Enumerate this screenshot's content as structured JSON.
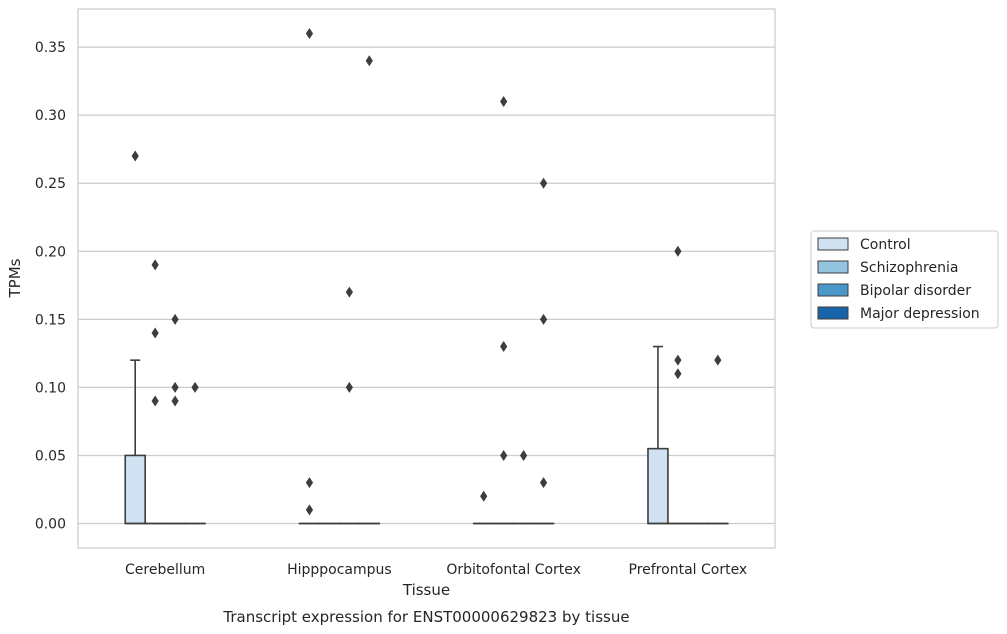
{
  "chart_data": {
    "type": "box",
    "title": "Transcript expression for ENST00000629823 by tissue",
    "xlabel": "Tissue",
    "ylabel": "TPMs",
    "ylim": [
      -0.018,
      0.378
    ],
    "yticks": [
      0.0,
      0.05,
      0.1,
      0.15,
      0.2,
      0.25,
      0.3,
      0.35
    ],
    "ytick_labels": [
      "0.00",
      "0.05",
      "0.10",
      "0.15",
      "0.20",
      "0.25",
      "0.30",
      "0.35"
    ],
    "grid": "horizontal",
    "legend_placement": "right",
    "categories": [
      "Cerebellum",
      "Hipppocampus",
      "Orbitofontal Cortex",
      "Prefrontal Cortex"
    ],
    "series": [
      {
        "name": "Control",
        "color": "#d0e1f2",
        "boxes": [
          {
            "q1": 0.0,
            "median": 0.0,
            "q3": 0.05,
            "whisker_low": 0.0,
            "whisker_high": 0.12,
            "outliers": [
              0.27
            ]
          },
          {
            "q1": 0.0,
            "median": 0.0,
            "q3": 0.0,
            "whisker_low": 0.0,
            "whisker_high": 0.0,
            "outliers": [
              0.01,
              0.03,
              0.36
            ]
          },
          {
            "q1": 0.0,
            "median": 0.0,
            "q3": 0.0,
            "whisker_low": 0.0,
            "whisker_high": 0.0,
            "outliers": [
              0.02
            ]
          },
          {
            "q1": 0.0,
            "median": 0.0,
            "q3": 0.055,
            "whisker_low": 0.0,
            "whisker_high": 0.13,
            "outliers": []
          }
        ]
      },
      {
        "name": "Schizophrenia",
        "color": "#94c4df",
        "boxes": [
          {
            "q1": 0.0,
            "median": 0.0,
            "q3": 0.0,
            "whisker_low": 0.0,
            "whisker_high": 0.0,
            "outliers": [
              0.09,
              0.14,
              0.19
            ]
          },
          {
            "q1": 0.0,
            "median": 0.0,
            "q3": 0.0,
            "whisker_low": 0.0,
            "whisker_high": 0.0,
            "outliers": []
          },
          {
            "q1": 0.0,
            "median": 0.0,
            "q3": 0.0,
            "whisker_low": 0.0,
            "whisker_high": 0.0,
            "outliers": [
              0.05,
              0.13,
              0.31
            ]
          },
          {
            "q1": 0.0,
            "median": 0.0,
            "q3": 0.0,
            "whisker_low": 0.0,
            "whisker_high": 0.0,
            "outliers": [
              0.11,
              0.12,
              0.2
            ]
          }
        ]
      },
      {
        "name": "Bipolar disorder",
        "color": "#4a98c9",
        "boxes": [
          {
            "q1": 0.0,
            "median": 0.0,
            "q3": 0.0,
            "whisker_low": 0.0,
            "whisker_high": 0.0,
            "outliers": [
              0.09,
              0.1,
              0.15
            ]
          },
          {
            "q1": 0.0,
            "median": 0.0,
            "q3": 0.0,
            "whisker_low": 0.0,
            "whisker_high": 0.0,
            "outliers": [
              0.1,
              0.17
            ]
          },
          {
            "q1": 0.0,
            "median": 0.0,
            "q3": 0.0,
            "whisker_low": 0.0,
            "whisker_high": 0.0,
            "outliers": [
              0.05
            ]
          },
          {
            "q1": 0.0,
            "median": 0.0,
            "q3": 0.0,
            "whisker_low": 0.0,
            "whisker_high": 0.0,
            "outliers": []
          }
        ]
      },
      {
        "name": "Major depression",
        "color": "#1764ab",
        "boxes": [
          {
            "q1": 0.0,
            "median": 0.0,
            "q3": 0.0,
            "whisker_low": 0.0,
            "whisker_high": 0.0,
            "outliers": [
              0.1
            ]
          },
          {
            "q1": 0.0,
            "median": 0.0,
            "q3": 0.0,
            "whisker_low": 0.0,
            "whisker_high": 0.0,
            "outliers": [
              0.34
            ]
          },
          {
            "q1": 0.0,
            "median": 0.0,
            "q3": 0.0,
            "whisker_low": 0.0,
            "whisker_high": 0.0,
            "outliers": [
              0.03,
              0.15,
              0.25
            ]
          },
          {
            "q1": 0.0,
            "median": 0.0,
            "q3": 0.0,
            "whisker_low": 0.0,
            "whisker_high": 0.0,
            "outliers": [
              0.12
            ]
          }
        ]
      }
    ]
  }
}
